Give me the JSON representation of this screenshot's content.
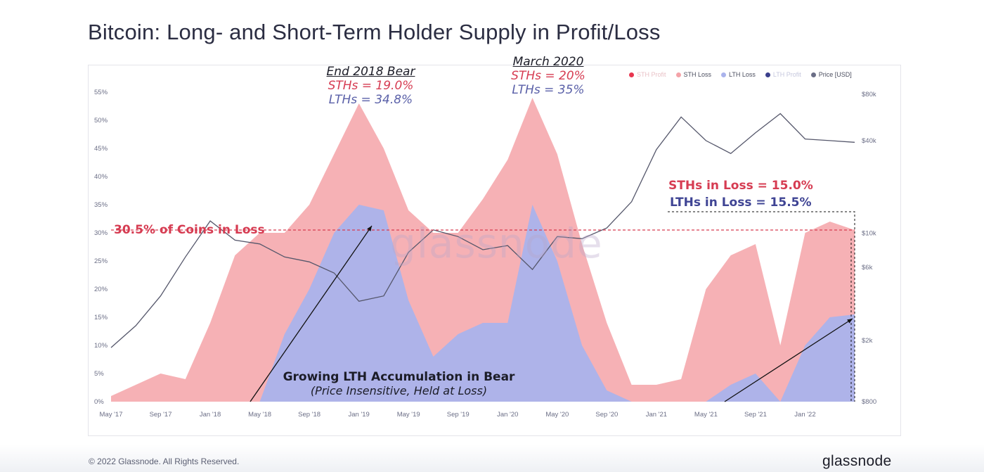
{
  "title": "Bitcoin: Long- and Short-Term Holder Supply in Profit/Loss",
  "footer": {
    "copyright": "© 2022 Glassnode. All Rights Reserved.",
    "brand": "glassnode"
  },
  "watermark": "glassnode",
  "legend": [
    {
      "label": "STH Profit",
      "color": "#e8354f",
      "muted": true
    },
    {
      "label": "STH Loss",
      "color": "#f4a3a8",
      "muted": false
    },
    {
      "label": "LTH Loss",
      "color": "#aab3ec",
      "muted": false
    },
    {
      "label": "LTH Profit",
      "color": "#3b3f8c",
      "muted": true
    },
    {
      "label": "Price [USD]",
      "color": "#6b6e86",
      "muted": false
    }
  ],
  "annotations": {
    "end2018": {
      "line1": "End 2018 Bear",
      "line2": "STHs = 19.0%",
      "line3": "LTHs = 34.8%"
    },
    "march2020": {
      "line1": "March 2020",
      "line2": "STHs = 20%",
      "line3": "LTHs = 35%"
    },
    "coins_in_loss": "30.5% of Coins in Loss",
    "sth_loss_now": "STHs in Loss = 15.0%",
    "lth_loss_now": "LTHs in Loss = 15.5%",
    "bear_title": "Growing LTH Accumulation in Bear",
    "bear_sub": "(Price Insensitive, Held at Loss)"
  },
  "colors": {
    "sth_loss": "#f4a3a8",
    "lth_loss": "#aab3ec",
    "price": "#55576b",
    "threshold": "#d63c52",
    "sth_text": "#d63c52",
    "lth_text": "#3f4494"
  },
  "chart_data": {
    "type": "area",
    "x": [
      "May '17",
      "Jul '17",
      "Sep '17",
      "Nov '17",
      "Jan '18",
      "Mar '18",
      "May '18",
      "Jul '18",
      "Sep '18",
      "Nov '18",
      "Jan '19",
      "Mar '19",
      "May '19",
      "Jul '19",
      "Sep '19",
      "Nov '19",
      "Jan '20",
      "Mar '20",
      "May '20",
      "Jul '20",
      "Sep '20",
      "Nov '20",
      "Jan '21",
      "Mar '21",
      "May '21",
      "Jul '21",
      "Sep '21",
      "Nov '21",
      "Jan '22",
      "Mar '22",
      "Apr '22"
    ],
    "x_ticks": [
      "May '17",
      "Sep '17",
      "Jan '18",
      "May '18",
      "Sep '18",
      "Jan '19",
      "May '19",
      "Sep '19",
      "Jan '20",
      "May '20",
      "Sep '20",
      "Jan '21",
      "May '21",
      "Sep '21",
      "Jan '22"
    ],
    "series": [
      {
        "name": "LTH Loss",
        "axis": "left_percent",
        "values": [
          0,
          0,
          0,
          0,
          0,
          0,
          0,
          12,
          20,
          30,
          35,
          34,
          18,
          8,
          12,
          14,
          14,
          35,
          25,
          10,
          2,
          0,
          0,
          0,
          0,
          3,
          5,
          0,
          10,
          15,
          15.5
        ]
      },
      {
        "name": "STH Loss",
        "axis": "left_percent",
        "values": [
          1,
          3,
          5,
          4,
          14,
          26,
          30,
          30,
          35,
          44,
          53,
          45,
          34,
          30,
          30,
          36,
          43,
          54,
          44,
          28,
          14,
          3,
          3,
          4,
          20,
          26,
          28,
          10,
          30,
          32,
          30.5
        ]
      },
      {
        "name": "Price [USD]",
        "axis": "right_log_usd",
        "values": [
          1800,
          2500,
          3900,
          7000,
          12000,
          9000,
          8500,
          7000,
          6500,
          5500,
          3600,
          3900,
          7500,
          10500,
          9500,
          7800,
          8300,
          5800,
          9500,
          9200,
          10800,
          16000,
          35000,
          57000,
          40000,
          33000,
          45000,
          60000,
          41000,
          40000,
          39000
        ]
      }
    ],
    "y_left": {
      "label": "",
      "ticks": [
        "0%",
        "5%",
        "10%",
        "15%",
        "20%",
        "25%",
        "30%",
        "35%",
        "40%",
        "45%",
        "50%",
        "55%"
      ],
      "ylim": [
        0,
        56
      ]
    },
    "y_right": {
      "label": "",
      "scale": "log",
      "ticks": [
        "$800",
        "$2k",
        "$6k",
        "$10k",
        "$40k",
        "$80k"
      ],
      "ylim": [
        800,
        90000
      ]
    },
    "threshold": {
      "value": 30.5,
      "label": "30.5% of Coins in Loss"
    },
    "grid": false,
    "legend_position": "top-right"
  }
}
